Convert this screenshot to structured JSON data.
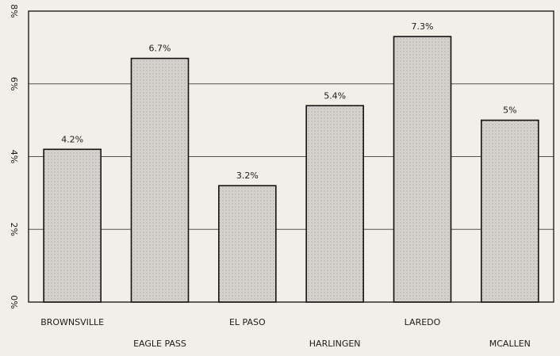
{
  "chart_data": {
    "type": "bar",
    "categories": [
      "BROWNSVILLE",
      "EAGLE PASS",
      "EL PASO",
      "HARLINGEN",
      "LAREDO",
      "MCALLEN"
    ],
    "values": [
      4.2,
      6.7,
      3.2,
      5.4,
      7.3,
      5
    ],
    "value_labels": [
      "4.2%",
      "6.7%",
      "3.2%",
      "5.4%",
      "7.3%",
      "5%"
    ],
    "y_ticks": [
      0,
      2,
      4,
      6,
      8
    ],
    "y_tick_labels": [
      "0%",
      "2%",
      "4%",
      "6%",
      "8%"
    ],
    "ylim": [
      0,
      8
    ],
    "grid": true,
    "title": "",
    "xlabel": "",
    "ylabel": "",
    "colors": {
      "background": "#f1efe8",
      "bar_fill": "#d8d6d0",
      "bar_dot": "#9a9a9a",
      "line": "#1f1f1f"
    }
  }
}
